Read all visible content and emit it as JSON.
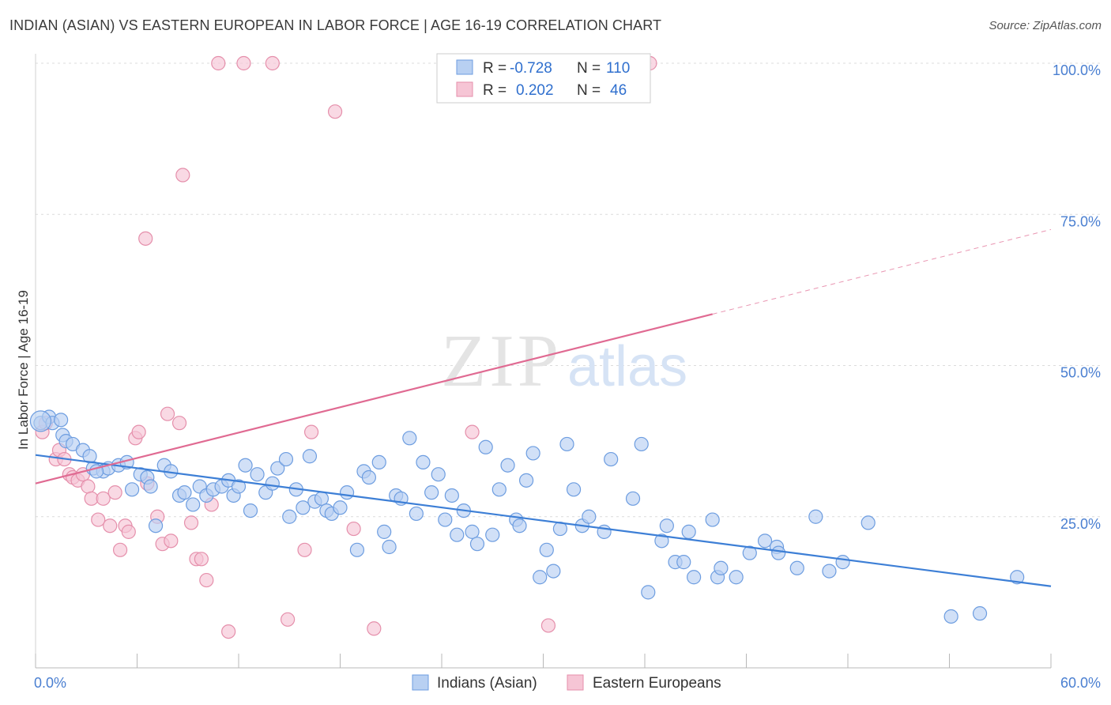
{
  "title": "INDIAN (ASIAN) VS EASTERN EUROPEAN IN LABOR FORCE | AGE 16-19 CORRELATION CHART",
  "source": "Source: ZipAtlas.com",
  "watermark": {
    "zip": "ZIP",
    "atlas": "atlas"
  },
  "colors": {
    "blue": "#3d7fd6",
    "blue_fill": "#b8d0f2",
    "pink": "#e06a92",
    "pink_fill": "#f6c5d5",
    "tick": "#4a7fd1"
  },
  "legend": {
    "rows": [
      {
        "r_label": "R =",
        "r_value": "-0.728",
        "n_label": "N =",
        "n_value": "110"
      },
      {
        "r_label": "R =",
        "r_value": "0.202",
        "n_label": "N =",
        "n_value": "46"
      }
    ]
  },
  "chart_data": {
    "type": "scatter",
    "title": "INDIAN (ASIAN) VS EASTERN EUROPEAN IN LABOR FORCE | AGE 16-19 CORRELATION CHART",
    "xlabel": "",
    "ylabel": "In Labor Force | Age 16-19",
    "xlim": [
      0,
      60
    ],
    "ylim": [
      0,
      100
    ],
    "x_tick_labels": [
      "0.0%",
      "60.0%"
    ],
    "y_ticks": [
      25,
      50,
      75,
      100
    ],
    "y_tick_labels": [
      "25.0%",
      "50.0%",
      "75.0%",
      "100.0%"
    ],
    "grid": true,
    "legend_position": "top-center",
    "series": [
      {
        "name": "Indians (Asian)",
        "r": -0.728,
        "n": 110,
        "trend": {
          "x0": 0,
          "y0": 35.2,
          "x1": 60,
          "y1": 13.5,
          "dashed_from": null
        },
        "points": [
          [
            0.3,
            40.5
          ],
          [
            0.8,
            41.5
          ],
          [
            1.0,
            40.5
          ],
          [
            1.6,
            38.5
          ],
          [
            1.8,
            37.5
          ],
          [
            2.2,
            37
          ],
          [
            2.8,
            36
          ],
          [
            3.2,
            35
          ],
          [
            3.4,
            33
          ],
          [
            4.0,
            32.5
          ],
          [
            4.3,
            33
          ],
          [
            4.9,
            33.5
          ],
          [
            5.4,
            34
          ],
          [
            5.7,
            29.5
          ],
          [
            6.2,
            32
          ],
          [
            6.6,
            31.5
          ],
          [
            6.8,
            30
          ],
          [
            7.1,
            23.5
          ],
          [
            7.6,
            33.5
          ],
          [
            8.0,
            32.5
          ],
          [
            8.5,
            28.5
          ],
          [
            8.8,
            29
          ],
          [
            9.3,
            27
          ],
          [
            9.7,
            30
          ],
          [
            10.1,
            28.5
          ],
          [
            10.5,
            29.5
          ],
          [
            11.0,
            30
          ],
          [
            11.4,
            31
          ],
          [
            11.7,
            28.5
          ],
          [
            12.0,
            30
          ],
          [
            12.4,
            33.5
          ],
          [
            12.7,
            26
          ],
          [
            13.1,
            32
          ],
          [
            13.6,
            29
          ],
          [
            14.0,
            30.5
          ],
          [
            14.3,
            33
          ],
          [
            14.8,
            34.5
          ],
          [
            15.0,
            25
          ],
          [
            15.4,
            29.5
          ],
          [
            15.8,
            26.5
          ],
          [
            16.2,
            35
          ],
          [
            16.5,
            27.5
          ],
          [
            16.9,
            28
          ],
          [
            17.2,
            26
          ],
          [
            17.5,
            25.5
          ],
          [
            18.0,
            26.5
          ],
          [
            18.4,
            29
          ],
          [
            19.0,
            19.5
          ],
          [
            19.4,
            32.5
          ],
          [
            19.7,
            31.5
          ],
          [
            20.3,
            34
          ],
          [
            20.6,
            22.5
          ],
          [
            20.9,
            20
          ],
          [
            21.3,
            28.5
          ],
          [
            21.6,
            28
          ],
          [
            22.1,
            38
          ],
          [
            22.5,
            25.5
          ],
          [
            22.9,
            34
          ],
          [
            23.4,
            29
          ],
          [
            23.8,
            32
          ],
          [
            24.2,
            24.5
          ],
          [
            24.6,
            28.5
          ],
          [
            24.9,
            22
          ],
          [
            25.3,
            26
          ],
          [
            25.8,
            22.5
          ],
          [
            26.1,
            20.5
          ],
          [
            26.6,
            36.5
          ],
          [
            27.0,
            22
          ],
          [
            27.4,
            29.5
          ],
          [
            27.9,
            33.5
          ],
          [
            28.4,
            24.5
          ],
          [
            28.6,
            23.5
          ],
          [
            29.0,
            31
          ],
          [
            29.4,
            35.5
          ],
          [
            29.8,
            15
          ],
          [
            30.2,
            19.5
          ],
          [
            30.6,
            16
          ],
          [
            31.0,
            23
          ],
          [
            31.4,
            37
          ],
          [
            31.8,
            29.5
          ],
          [
            32.3,
            23.5
          ],
          [
            32.7,
            25
          ],
          [
            33.6,
            22.5
          ],
          [
            34.0,
            34.5
          ],
          [
            35.3,
            28
          ],
          [
            35.8,
            37
          ],
          [
            36.2,
            12.5
          ],
          [
            37.0,
            21
          ],
          [
            37.3,
            23.5
          ],
          [
            37.8,
            17.5
          ],
          [
            38.3,
            17.5
          ],
          [
            38.6,
            22.5
          ],
          [
            38.9,
            15
          ],
          [
            40.0,
            24.5
          ],
          [
            40.3,
            15
          ],
          [
            40.5,
            16.5
          ],
          [
            41.4,
            15
          ],
          [
            42.2,
            19
          ],
          [
            43.1,
            21
          ],
          [
            43.8,
            20
          ],
          [
            43.9,
            19
          ],
          [
            45.0,
            16.5
          ],
          [
            46.1,
            25
          ],
          [
            46.9,
            16
          ],
          [
            47.7,
            17.5
          ],
          [
            49.2,
            24
          ],
          [
            54.1,
            8.5
          ],
          [
            55.8,
            9
          ],
          [
            58.0,
            15
          ],
          [
            1.5,
            41
          ],
          [
            3.6,
            32.5
          ]
        ]
      },
      {
        "name": "Eastern Europeans",
        "r": 0.202,
        "n": 46,
        "trend": {
          "x0": 0,
          "y0": 30.5,
          "x1": 60,
          "y1": 72.5,
          "dashed_from": 40
        },
        "points": [
          [
            0.4,
            39
          ],
          [
            0.6,
            40.5
          ],
          [
            1.2,
            34.5
          ],
          [
            1.4,
            36
          ],
          [
            1.7,
            34.5
          ],
          [
            2.0,
            32
          ],
          [
            2.2,
            31.5
          ],
          [
            2.5,
            31
          ],
          [
            2.8,
            32
          ],
          [
            3.1,
            30
          ],
          [
            3.3,
            28
          ],
          [
            3.7,
            24.5
          ],
          [
            4.0,
            28
          ],
          [
            4.4,
            23.5
          ],
          [
            4.7,
            29
          ],
          [
            5.0,
            19.5
          ],
          [
            5.3,
            23.5
          ],
          [
            5.5,
            22.5
          ],
          [
            5.9,
            38
          ],
          [
            6.1,
            39
          ],
          [
            6.6,
            30.5
          ],
          [
            6.5,
            71
          ],
          [
            7.2,
            25
          ],
          [
            7.5,
            20.5
          ],
          [
            7.8,
            42
          ],
          [
            8.0,
            21
          ],
          [
            8.5,
            40.5
          ],
          [
            8.7,
            81.5
          ],
          [
            9.2,
            24
          ],
          [
            9.5,
            18
          ],
          [
            9.8,
            18
          ],
          [
            10.1,
            14.5
          ],
          [
            10.4,
            27
          ],
          [
            10.8,
            100
          ],
          [
            11.4,
            6
          ],
          [
            12.3,
            100
          ],
          [
            14.0,
            100
          ],
          [
            14.9,
            8
          ],
          [
            15.9,
            19.5
          ],
          [
            16.3,
            39
          ],
          [
            17.7,
            92
          ],
          [
            18.8,
            23
          ],
          [
            20.0,
            6.5
          ],
          [
            25.8,
            39
          ],
          [
            30.3,
            7
          ],
          [
            36.3,
            100
          ]
        ]
      }
    ]
  },
  "bottom_legend": [
    {
      "label": "Indians (Asian)"
    },
    {
      "label": "Eastern Europeans"
    }
  ]
}
